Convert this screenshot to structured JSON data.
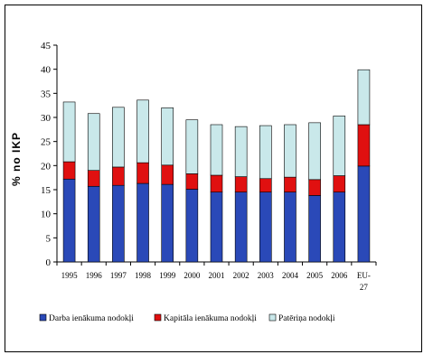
{
  "chart_data": {
    "type": "bar",
    "stacked": true,
    "ylabel": "% no IKP",
    "ylim": [
      0,
      45
    ],
    "yticks": [
      0,
      5,
      10,
      15,
      20,
      25,
      30,
      35,
      40,
      45
    ],
    "categories": [
      "1995",
      "1996",
      "1997",
      "1998",
      "1999",
      "2000",
      "2001",
      "2002",
      "2003",
      "2004",
      "2005",
      "2006",
      "EU-27"
    ],
    "series": [
      {
        "name": "Darba ienākuma nodokļi",
        "color": "#2a49b8",
        "values": [
          17.2,
          15.7,
          15.9,
          16.3,
          16.1,
          15.1,
          14.5,
          14.5,
          14.5,
          14.5,
          13.8,
          14.5,
          19.9
        ]
      },
      {
        "name": "Kapitāla ienākuma nodokļi",
        "color": "#e01010",
        "values": [
          3.6,
          3.3,
          3.8,
          4.3,
          4.0,
          3.2,
          3.5,
          3.2,
          2.8,
          3.1,
          3.3,
          3.4,
          8.6
        ]
      },
      {
        "name": "Patēriņa nodokļi",
        "color": "#c9e8ea",
        "values": [
          12.4,
          11.8,
          12.4,
          13.0,
          11.9,
          11.2,
          10.5,
          10.4,
          11.0,
          10.9,
          11.8,
          12.4,
          11.4
        ]
      }
    ],
    "grid": false,
    "legend_position": "bottom"
  }
}
